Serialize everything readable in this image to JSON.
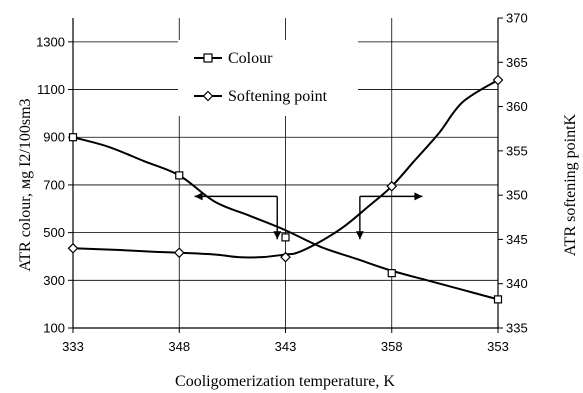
{
  "chart_data": {
    "type": "line",
    "xlabel": "Cooligomerization temperature, K",
    "ylabel_left": "ATR colour, мg I2/100sm3",
    "ylabel_right": "ATR softening pointK",
    "categories": [
      "333",
      "348",
      "343",
      "358",
      "353"
    ],
    "yleft_ticks": [
      "100",
      "300",
      "500",
      "700",
      "900",
      "1100",
      "1300"
    ],
    "yleft_lim": [
      100,
      1400
    ],
    "yright_ticks": [
      "335",
      "340",
      "345",
      "350",
      "355",
      "360",
      "365",
      "370"
    ],
    "yright_lim": [
      335,
      370
    ],
    "grid": true,
    "legend_position": "top-center",
    "series": [
      {
        "name": "Colour",
        "axis": "left",
        "marker": "square",
        "values": [
          900,
          740,
          480,
          330,
          220
        ],
        "curve_left": [
          [
            333,
            900
          ],
          [
            336,
            860
          ],
          [
            339,
            800
          ],
          [
            342,
            740
          ],
          [
            345,
            630
          ],
          [
            348,
            570
          ],
          [
            351,
            510
          ],
          [
            354,
            440
          ],
          [
            357,
            390
          ],
          [
            360,
            340
          ],
          [
            363,
            300
          ],
          [
            366,
            260
          ],
          [
            369,
            220
          ]
        ],
        "curve_right": []
      },
      {
        "name": "Softening point",
        "axis": "right",
        "marker": "diamond",
        "values": [
          344,
          343.5,
          343,
          351,
          363
        ],
        "curve_right": [
          [
            333,
            344
          ],
          [
            337,
            343.8
          ],
          [
            340,
            343.6
          ],
          [
            342,
            343.5
          ],
          [
            345,
            343.3
          ],
          [
            347,
            343
          ],
          [
            349,
            343
          ],
          [
            351,
            343.3
          ],
          [
            352,
            343.5
          ],
          [
            354,
            344.8
          ],
          [
            356,
            346.5
          ],
          [
            358,
            348.7
          ],
          [
            360,
            351
          ],
          [
            362,
            354
          ],
          [
            364,
            357
          ],
          [
            366,
            360.5
          ],
          [
            369,
            363
          ]
        ],
        "curve_left": []
      }
    ],
    "annotations": [
      {
        "type": "arrow-left",
        "note": "Colour series uses left axis"
      },
      {
        "type": "arrow-right",
        "note": "Softening point series uses right axis"
      }
    ],
    "colors": {
      "line": "#000000",
      "grid": "#000000",
      "background": "#ffffff"
    }
  }
}
